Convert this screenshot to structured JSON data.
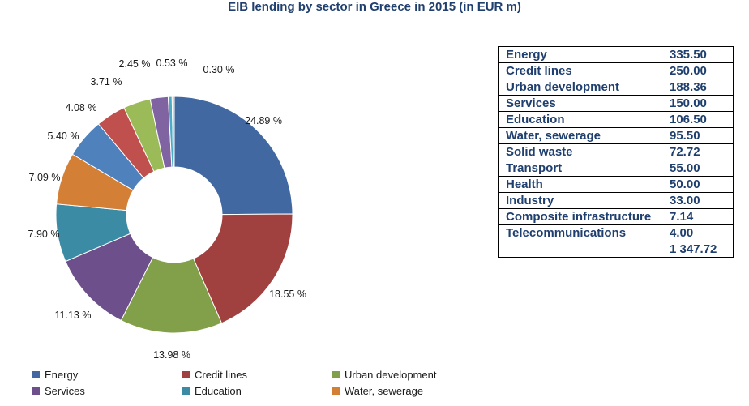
{
  "title": "EIB lending by sector in Greece in 2015 (in EUR m)",
  "chart_data": {
    "type": "pie",
    "title": "EIB lending by sector in Greece in 2015 (in EUR m)",
    "donut": true,
    "slices": [
      {
        "name": "Energy",
        "value": 335.5,
        "label": "24.89 %",
        "color": "#4168a0"
      },
      {
        "name": "Credit lines",
        "value": 250.0,
        "label": "18.55 %",
        "color": "#a0403f"
      },
      {
        "name": "Urban development",
        "value": 188.36,
        "label": "13.98 %",
        "color": "#82a04a"
      },
      {
        "name": "Services",
        "value": 150.0,
        "label": "11.13 %",
        "color": "#6c4f8b"
      },
      {
        "name": "Education",
        "value": 106.5,
        "label": "7.90 %",
        "color": "#3b8ba5"
      },
      {
        "name": "Water, sewerage",
        "value": 95.5,
        "label": "7.09 %",
        "color": "#d37f35"
      },
      {
        "name": "Solid waste",
        "value": 72.72,
        "label": "5.40 %",
        "color": "#4f81bd"
      },
      {
        "name": "Transport",
        "value": 55.0,
        "label": "4.08 %",
        "color": "#c0504d"
      },
      {
        "name": "Health",
        "value": 50.0,
        "label": "3.71 %",
        "color": "#9bbb59"
      },
      {
        "name": "Industry",
        "value": 33.0,
        "label": "2.45 %",
        "color": "#8064a2"
      },
      {
        "name": "Composite infrastructure",
        "value": 7.14,
        "label": "0.53 %",
        "color": "#4bacc6"
      },
      {
        "name": "Telecommunications",
        "value": 4.0,
        "label": "0.30 %",
        "color": "#f79646"
      }
    ],
    "legend": [
      {
        "name": "Energy",
        "color": "#4168a0"
      },
      {
        "name": "Credit lines",
        "color": "#a0403f"
      },
      {
        "name": "Urban development",
        "color": "#82a04a"
      },
      {
        "name": "Services",
        "color": "#6c4f8b"
      },
      {
        "name": "Education",
        "color": "#3b8ba5"
      },
      {
        "name": "Water, sewerage",
        "color": "#d37f35"
      }
    ],
    "legend_position": "bottom"
  },
  "table": {
    "rows": [
      {
        "name": "Energy",
        "value": "335.50"
      },
      {
        "name": "Credit lines",
        "value": "250.00"
      },
      {
        "name": "Urban development",
        "value": "188.36"
      },
      {
        "name": "Services",
        "value": "150.00"
      },
      {
        "name": "Education",
        "value": "106.50"
      },
      {
        "name": "Water, sewerage",
        "value": "95.50"
      },
      {
        "name": "Solid waste",
        "value": "72.72"
      },
      {
        "name": "Transport",
        "value": "55.00"
      },
      {
        "name": "Health",
        "value": "50.00"
      },
      {
        "name": "Industry",
        "value": "33.00"
      },
      {
        "name": "Composite infrastructure",
        "value": "7.14"
      },
      {
        "name": "Telecommunications",
        "value": "4.00"
      }
    ],
    "total": "1 347.72"
  }
}
